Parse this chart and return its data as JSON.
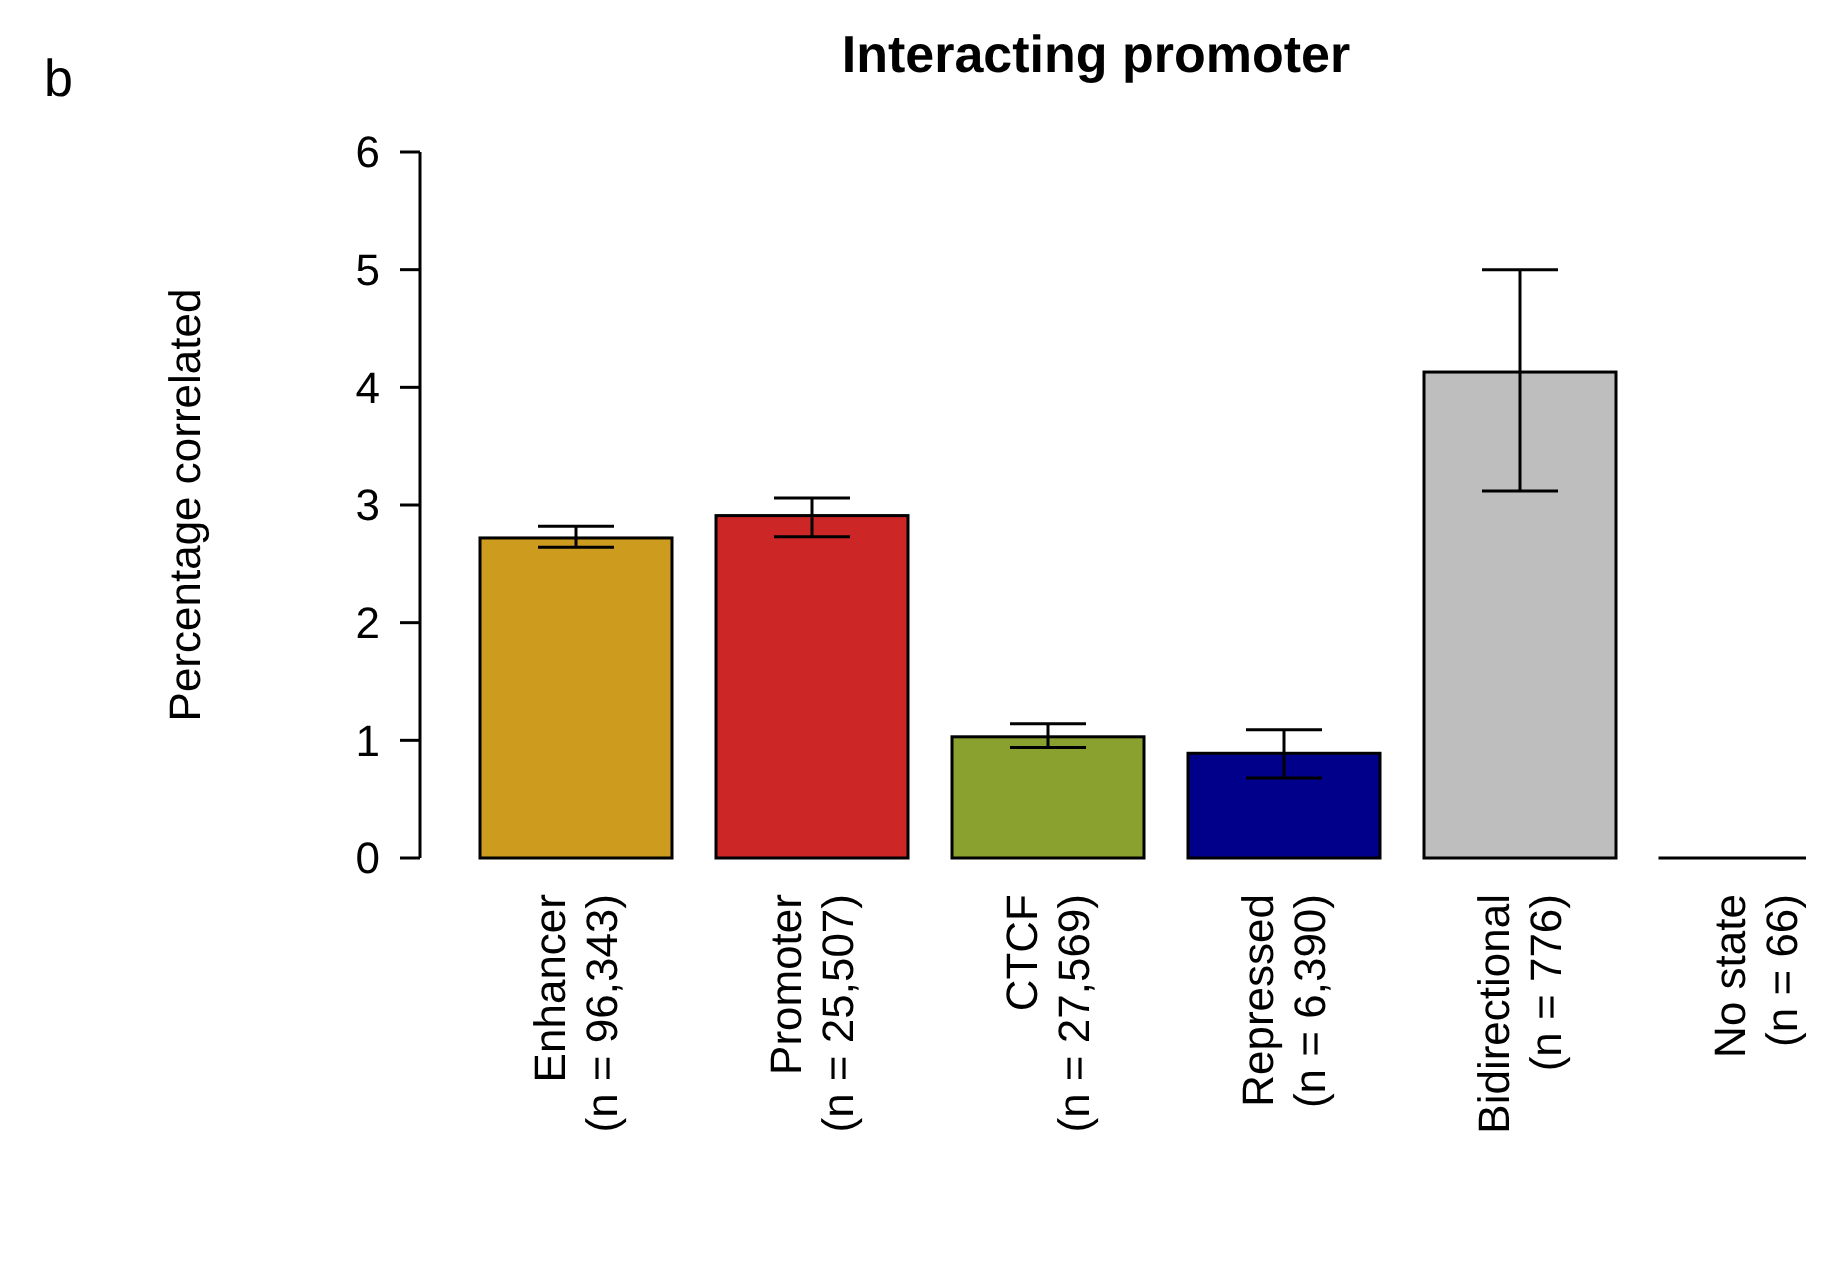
{
  "chart_data": {
    "type": "bar",
    "title": "Interacting promoter",
    "ylabel": "Percentage correlated",
    "annotations": [
      "b"
    ],
    "categories": [
      "Enhancer\n(n = 96,343)",
      "Promoter\n(n = 25,507)",
      "CTCF\n(n = 27,569)",
      "Repressed\n(n = 6,390)",
      "Bidirectional\n(n = 776)",
      "No state\n(n = 66)"
    ],
    "values": [
      2.72,
      2.91,
      1.03,
      0.89,
      4.13,
      0
    ],
    "colors": [
      "#cd9b1d",
      "#cd2626",
      "#8aa12f",
      "#00008b",
      "#bebebe",
      "#ffffff"
    ],
    "errors": [
      [
        2.64,
        2.82
      ],
      [
        2.73,
        3.06
      ],
      [
        0.94,
        1.14
      ],
      [
        0.68,
        1.09
      ],
      [
        3.12,
        5.0
      ],
      null
    ],
    "ylim": [
      0,
      6
    ],
    "yticks": [
      0,
      1,
      2,
      3,
      4,
      5,
      6
    ],
    "grid": false
  }
}
